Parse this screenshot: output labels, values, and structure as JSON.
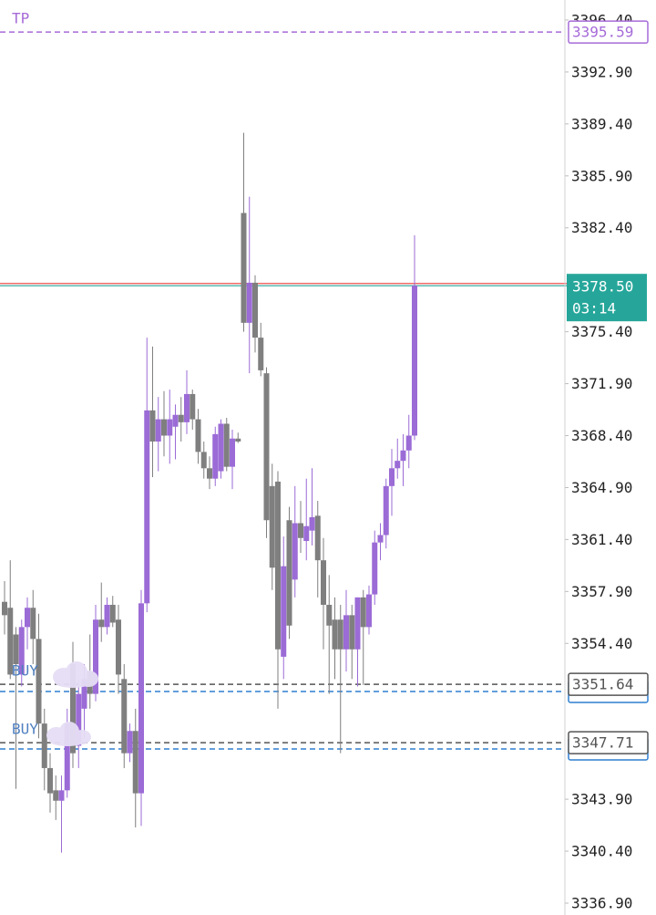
{
  "chart_data": {
    "type": "candlestick",
    "categories": [
      null,
      null,
      null,
      null,
      null,
      null,
      null,
      null,
      null,
      null,
      null,
      null,
      null,
      null,
      null,
      null,
      null,
      null,
      null,
      null,
      null,
      null,
      null,
      null,
      null,
      null,
      null,
      null,
      null,
      null,
      null,
      null,
      null,
      null,
      null,
      null,
      null,
      null,
      null,
      null,
      null,
      null,
      null,
      null,
      null,
      null,
      null,
      null,
      null,
      null,
      null,
      null,
      null,
      null,
      null,
      null,
      null,
      null,
      null,
      null,
      null,
      null,
      null,
      null,
      null,
      null,
      null,
      null,
      null,
      null,
      null,
      null,
      null
    ],
    "open": [
      3357.2,
      3356.8,
      3355,
      3352.3,
      3355.5,
      3356.8,
      3354.7,
      3349,
      3346,
      3344.5,
      3343.8,
      3344.5,
      3353,
      3347.5,
      3350,
      3352.5,
      3351,
      3356,
      3355.5,
      3357,
      3356,
      3352,
      3347,
      3348.5,
      3344.3,
      3357.1,
      3370.1,
      3368,
      3369.5,
      3368.4,
      3369,
      3369.8,
      3369.3,
      3371.2,
      3369.5,
      3367.3,
      3366.2,
      3365.5,
      3366,
      3369.2,
      3366.3,
      3368.2,
      3383.4,
      3376,
      3378.7,
      3375,
      3372.6,
      3365,
      3365.3,
      3353.5,
      3362.7,
      3358.7,
      3362.5,
      3361.3,
      3362,
      3363,
      3360,
      3357,
      3356,
      3356,
      3354,
      3356.3,
      3354,
      3357.5,
      3355.5,
      3357.7,
      3361.2,
      3361.7,
      3365,
      3366.2,
      3366.7,
      3367.4,
      3368.4
    ],
    "high": [
      3358.6,
      3360,
      3355.5,
      3356,
      3357.5,
      3358,
      3356.4,
      3350,
      3347,
      3345.5,
      3345.5,
      3350,
      3354.5,
      3352,
      3353,
      3355,
      3357,
      3358.5,
      3357.5,
      3357.6,
      3357,
      3353,
      3349,
      3350,
      3358,
      3375,
      3374.4,
      3371,
      3371.4,
      3371.5,
      3370.5,
      3371,
      3372.8,
      3371.5,
      3370.2,
      3368,
      3367,
      3369,
      3369.5,
      3369.6,
      3368.8,
      3368.6,
      3388.8,
      3384.5,
      3379.2,
      3376,
      3373,
      3366.5,
      3366,
      3361.6,
      3363.6,
      3365,
      3364,
      3365.5,
      3366.2,
      3364,
      3361.5,
      3359,
      3357.5,
      3357,
      3358,
      3357,
      3357.5,
      3358,
      3358.3,
      3362,
      3362.5,
      3365.5,
      3367.5,
      3368.2,
      3368.5,
      3369.8,
      3381.9
    ],
    "low": [
      3355,
      3352,
      3344.6,
      3351.5,
      3354,
      3353,
      3348,
      3344.5,
      3343,
      3342.5,
      3340.3,
      3344,
      3346,
      3346,
      3348,
      3350,
      3350.5,
      3354.5,
      3355,
      3355.5,
      3351,
      3346,
      3346.4,
      3342,
      3342.1,
      3356.5,
      3365.6,
      3366,
      3367,
      3366.5,
      3366.8,
      3368,
      3368.5,
      3368.8,
      3366.5,
      3365.5,
      3364.8,
      3365,
      3365.5,
      3366,
      3364.8,
      3367.9,
      3375.4,
      3372.6,
      3374,
      3372.4,
      3361.5,
      3358,
      3350,
      3352,
      3354.7,
      3357.5,
      3360.5,
      3360,
      3361,
      3357.5,
      3354,
      3351,
      3352,
      3347,
      3352.5,
      3352,
      3351.5,
      3351.6,
      3355,
      3357,
      3360,
      3360.8,
      3363,
      3365.5,
      3365,
      3366.2,
      3368.1
    ],
    "close": [
      3356.3,
      3352.3,
      3353,
      3355.5,
      3356.8,
      3354.7,
      3349,
      3346,
      3344.3,
      3343.8,
      3344.5,
      3349,
      3347,
      3351,
      3352,
      3351,
      3356,
      3355.5,
      3357,
      3355.8,
      3352.3,
      3347,
      3348.5,
      3344.3,
      3357.1,
      3370.1,
      3368,
      3369.5,
      3368.4,
      3369.5,
      3369.8,
      3369.3,
      3371.2,
      3369.5,
      3367.3,
      3366.2,
      3365.5,
      3368.5,
      3369.2,
      3366.3,
      3368.2,
      3368,
      3376,
      3378.7,
      3375,
      3372.8,
      3362.7,
      3359.5,
      3354,
      3359.6,
      3355.6,
      3362.5,
      3361.5,
      3362.3,
      3362.9,
      3360,
      3357,
      3355.6,
      3354,
      3354,
      3356.3,
      3354,
      3357.5,
      3355.5,
      3357.7,
      3361.2,
      3361.7,
      3365,
      3366.2,
      3366.7,
      3367.4,
      3368.4,
      3378.5
    ],
    "up_color": "#9b6bd6",
    "down_color": "#7f7f7f",
    "ylim": [
      3336.1,
      3397.75
    ],
    "yticks": [
      {
        "value": 3396.4,
        "label": "3396.40"
      },
      {
        "value": 3392.9,
        "label": "3392.90"
      },
      {
        "value": 3389.4,
        "label": "3389.40"
      },
      {
        "value": 3385.9,
        "label": "3385.90"
      },
      {
        "value": 3382.4,
        "label": "3382.40"
      },
      {
        "value": 3375.4,
        "label": "3375.40"
      },
      {
        "value": 3371.9,
        "label": "3371.90"
      },
      {
        "value": 3368.4,
        "label": "3368.40"
      },
      {
        "value": 3364.9,
        "label": "3364.90"
      },
      {
        "value": 3361.4,
        "label": "3361.40"
      },
      {
        "value": 3357.9,
        "label": "3357.90"
      },
      {
        "value": 3354.4,
        "label": "3354.40"
      },
      {
        "value": 3343.9,
        "label": "3343.90"
      },
      {
        "value": 3340.4,
        "label": "3340.40"
      },
      {
        "value": 3336.9,
        "label": "3336.90"
      }
    ],
    "grid": false,
    "price_lines": [
      {
        "label": "TP",
        "label_color": "#a66bd8",
        "value": 3395.59,
        "value_label": "3395.59",
        "color": "#a66bd8",
        "style": "dashed",
        "tag": "outline"
      },
      {
        "value": 3378.65,
        "color": "#ef5350",
        "style": "solid"
      },
      {
        "value": 3378.5,
        "value_label": "3378.50",
        "countdown": "03:14",
        "color": "#26a69a",
        "style": "solid",
        "tag": "filled"
      },
      {
        "label": "BUY",
        "label_color": "#4f7fc0",
        "value": 3351.64,
        "value_label": "3351.64",
        "color": "#555555",
        "style": "dashed",
        "tag": "outline"
      },
      {
        "value": 3351.16,
        "color": "#2f7fd1",
        "style": "dashed",
        "tag": "outline"
      },
      {
        "label": "BUY",
        "label_color": "#4f7fc0",
        "value": 3347.71,
        "value_label": "3347.71",
        "color": "#555555",
        "style": "dashed",
        "tag": "outline"
      },
      {
        "value": 3347.29,
        "color": "#2f7fd1",
        "style": "dashed",
        "tag": "outline"
      }
    ]
  }
}
